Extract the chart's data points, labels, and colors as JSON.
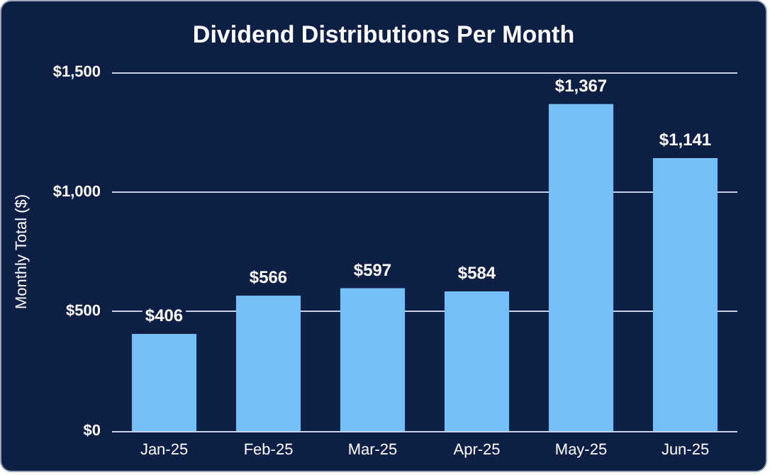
{
  "chart_data": {
    "type": "bar",
    "title": "Dividend Distributions Per Month",
    "ylabel": "Monthly Total ($)",
    "categories": [
      "Jan-25",
      "Feb-25",
      "Mar-25",
      "Apr-25",
      "May-25",
      "Jun-25"
    ],
    "values": [
      406,
      566,
      597,
      584,
      1367,
      1141
    ],
    "value_labels": [
      "$406",
      "$566",
      "$597",
      "$584",
      "$1,367",
      "$1,141"
    ],
    "color": "#74bff7",
    "ylim": [
      0,
      1500
    ],
    "yticks": [
      {
        "value": 0,
        "label": "$0"
      },
      {
        "value": 500,
        "label": "$500"
      },
      {
        "value": 1000,
        "label": "$1,000"
      },
      {
        "value": 1500,
        "label": "$1,500"
      }
    ],
    "grid": "y"
  }
}
